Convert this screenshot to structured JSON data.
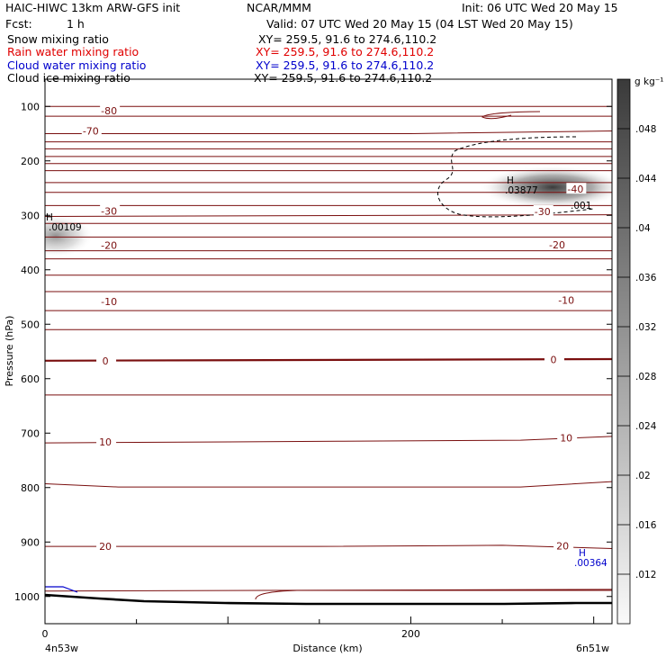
{
  "header": {
    "model": "HAIC-HIWC 13km ARW-GFS init",
    "org": "NCAR/MMM",
    "init": "Init: 06 UTC Wed 20 May 15",
    "fcst_label": "Fcst:",
    "fcst_value": "1 h",
    "valid": "Valid: 07 UTC Wed 20 May 15 (04 LST Wed 20 May 15)",
    "fields": [
      {
        "name": "Snow mixing ratio",
        "xy": "XY= 259.5, 91.6 to 274.6,110.2",
        "color": "#000000"
      },
      {
        "name": "Rain water mixing ratio",
        "xy": "XY= 259.5, 91.6 to 274.6,110.2",
        "color": "#e00000"
      },
      {
        "name": "Cloud water mixing ratio",
        "xy": "XY= 259.5, 91.6 to 274.6,110.2",
        "color": "#0000cc"
      },
      {
        "name": "Cloud ice mixing ratio",
        "xy": "XY= 259.5, 91.6 to 274.6,110.2",
        "color": "#000000"
      }
    ]
  },
  "chart_data": {
    "type": "cross-section",
    "xlabel": "Distance (km)",
    "ylabel": "Pressure (hPa)",
    "x_ticks": [
      "0",
      "200"
    ],
    "x_range": [
      0,
      310
    ],
    "y_ticks": [
      "100",
      "200",
      "300",
      "400",
      "500",
      "600",
      "700",
      "800",
      "900",
      "1000"
    ],
    "y_range": [
      50,
      1050
    ],
    "left_endpoint": "4n53w",
    "right_endpoint": "6n51w",
    "temperature_contours": [
      {
        "label": "-80",
        "value": -80
      },
      {
        "label": "-70",
        "value": -70
      },
      {
        "label": "-40",
        "value": -40
      },
      {
        "label": "-30",
        "value": -30
      },
      {
        "label": "-20",
        "value": -20
      },
      {
        "label": "-10",
        "value": -10
      },
      {
        "label": "0",
        "value": 0
      },
      {
        "label": "10",
        "value": 10
      },
      {
        "label": "20",
        "value": 20
      }
    ],
    "maxima": [
      {
        "symbol": "H",
        "value": ".00109",
        "x": 5,
        "p": 320,
        "color": "#000000"
      },
      {
        "symbol": "H",
        "value": ".03877",
        "x": 262,
        "p": 245,
        "color": "#000000"
      },
      {
        "symbol": "H",
        "value": ".00364",
        "x": 295,
        "p": 935,
        "color": "#0000cc"
      }
    ],
    "contour_label_extra": ".001",
    "colorbar": {
      "unit": "g kg⁻¹",
      "ticks": [
        ".012",
        ".016",
        ".02",
        ".024",
        ".028",
        ".032",
        ".036",
        ".04",
        ".044",
        ".048"
      ]
    },
    "colors": {
      "contour": "#7a0f0f",
      "zero_line": "#7a0f0f",
      "terrain": "#000000",
      "cloud_water": "#0000cc"
    }
  }
}
